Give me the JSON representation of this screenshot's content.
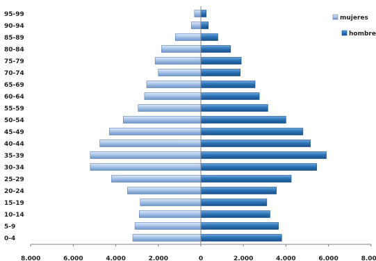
{
  "chart_data": {
    "type": "bar",
    "orientation": "horizontal",
    "layout": "population-pyramid",
    "categories": [
      "0-4",
      "5-9",
      "10-14",
      "15-19",
      "20-24",
      "25-29",
      "30-34",
      "35-39",
      "40-44",
      "45-49",
      "50-54",
      "55-59",
      "60-64",
      "65-69",
      "70-74",
      "75-79",
      "80-84",
      "85-89",
      "90-94",
      "95-99"
    ],
    "series": [
      {
        "name": "mujeres",
        "color": "#a8c4e8",
        "side": "left",
        "values": [
          3200,
          3100,
          2900,
          2850,
          3450,
          4200,
          5200,
          5200,
          4750,
          4300,
          3650,
          2950,
          2650,
          2550,
          2000,
          2150,
          1850,
          1200,
          450,
          300
        ]
      },
      {
        "name": "hombres",
        "color": "#2a74b8",
        "side": "right",
        "values": [
          3800,
          3650,
          3250,
          3100,
          3550,
          4250,
          5450,
          5900,
          5150,
          4800,
          4000,
          3150,
          2750,
          2550,
          1850,
          1900,
          1400,
          800,
          350,
          250
        ]
      }
    ],
    "ticks": [
      "8.000",
      "6.000",
      "4.000",
      "2.000",
      "0",
      "2.000",
      "4.000",
      "6.000",
      "8.000"
    ],
    "xlim": [
      -8000,
      8000
    ],
    "grid": false,
    "legend": "top-right"
  }
}
